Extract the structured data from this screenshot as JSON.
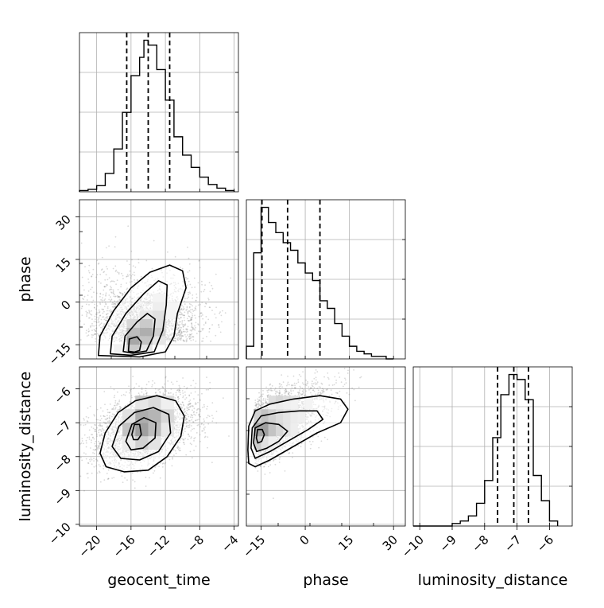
{
  "chart_data": {
    "type": "corner",
    "parameters": [
      "geocent_time",
      "phase",
      "luminosity_distance"
    ],
    "grid": true,
    "diagonal": [
      {
        "parameter": "geocent_time",
        "type": "histogram",
        "xlim": [
          -22,
          -3.5
        ],
        "bins": [
          -22,
          -21,
          -20,
          -19,
          -18,
          -17,
          -16,
          -15,
          -14.5,
          -14,
          -13,
          -12,
          -11,
          -10,
          -9,
          -8,
          -7,
          -6,
          -5,
          -4
        ],
        "counts": [
          1,
          2,
          5,
          15,
          35,
          65,
          95,
          110,
          124,
          120,
          100,
          75,
          45,
          30,
          20,
          12,
          6,
          3,
          1
        ],
        "quantiles": [
          -16.5,
          -14.0,
          -11.5
        ],
        "quantile_labels": [
          "16%",
          "50%",
          "84%"
        ]
      },
      {
        "parameter": "phase",
        "type": "histogram",
        "xlim": [
          -20,
          34
        ],
        "xticks": [
          -15,
          0,
          15,
          30
        ],
        "bins": [
          -20,
          -17.5,
          -15,
          -12.5,
          -10,
          -7.5,
          -5,
          -2.5,
          0,
          2.5,
          5,
          7.5,
          10,
          12.5,
          15,
          17.5,
          20,
          22.5,
          25,
          27.5,
          30
        ],
        "counts": [
          5,
          42,
          60,
          54,
          50,
          46,
          43,
          38,
          34,
          31,
          23,
          20,
          14,
          9,
          5,
          3,
          2,
          1,
          1,
          0
        ],
        "quantiles": [
          -14.7,
          -6.0,
          5.0
        ],
        "quantile_labels": [
          "16%",
          "50%",
          "84%"
        ]
      },
      {
        "parameter": "luminosity_distance",
        "type": "histogram",
        "xlim": [
          -10.2,
          -5.3
        ],
        "xticks": [
          -10,
          -9,
          -8,
          -7,
          -6
        ],
        "bins": [
          -10,
          -9.75,
          -9.5,
          -9.25,
          -9,
          -8.75,
          -8.5,
          -8.25,
          -8,
          -7.75,
          -7.5,
          -7.25,
          -7,
          -6.75,
          -6.5,
          -6.25,
          -6,
          -5.75
        ],
        "counts": [
          0,
          0,
          0,
          0,
          1,
          2,
          4,
          9,
          18,
          35,
          52,
          60,
          58,
          50,
          20,
          10,
          2
        ],
        "quantiles": [
          -7.6,
          -7.1,
          -6.65
        ],
        "quantile_labels": [
          "16%",
          "50%",
          "84%"
        ]
      }
    ],
    "panels_2d": [
      {
        "x": "geocent_time",
        "y": "phase",
        "type": "density-contour",
        "xlim": [
          -22,
          -3.5
        ],
        "ylim": [
          -20,
          36
        ],
        "yticks": [
          -15,
          0,
          15,
          30
        ],
        "peak": {
          "x": -15.5,
          "y": -15
        }
      },
      {
        "x": "geocent_time",
        "y": "luminosity_distance",
        "type": "density-contour",
        "xlim": [
          -22,
          -3.5
        ],
        "ylim": [
          -10.05,
          -5.35
        ],
        "xticks": [
          -20,
          -16,
          -12,
          -8,
          -4
        ],
        "yticks": [
          -10,
          -9,
          -8,
          -7,
          -6
        ],
        "peak": {
          "x": -15,
          "y": -7.2
        }
      },
      {
        "x": "phase",
        "y": "luminosity_distance",
        "type": "density-contour",
        "xlim": [
          -20,
          34
        ],
        "ylim": [
          -10.05,
          -5.35
        ],
        "xticks": [
          -15,
          0,
          15,
          30
        ],
        "peak": {
          "x": -16,
          "y": -7.4
        }
      }
    ],
    "xlabels": [
      "geocent_time",
      "phase",
      "luminosity_distance"
    ],
    "ylabels": [
      "phase",
      "luminosity_distance"
    ],
    "tick_labels": {
      "geocent_time": [
        "−20",
        "−16",
        "−12",
        "−8",
        "−4"
      ],
      "phase": [
        "−15",
        "0",
        "15",
        "30"
      ],
      "luminosity_distance": [
        "−10",
        "−9",
        "−8",
        "−7",
        "−6"
      ]
    }
  }
}
